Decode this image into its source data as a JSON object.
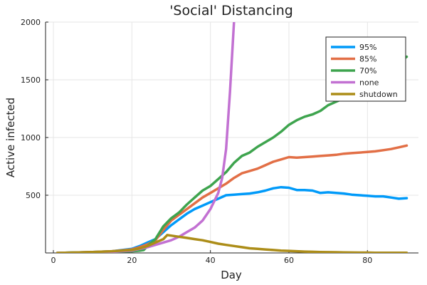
{
  "chart_data": {
    "type": "line",
    "title": "'Social' Distancing",
    "xlabel": "Day",
    "ylabel": "Active infected",
    "xlim": [
      -2,
      93
    ],
    "ylim": [
      0,
      2000
    ],
    "xticks": [
      0,
      20,
      40,
      60,
      80
    ],
    "yticks": [
      500,
      1000,
      1500,
      2000
    ],
    "grid": true,
    "legend_position": "top-right",
    "series": [
      {
        "name": "95%",
        "color": "#009af9",
        "x": [
          1,
          5,
          10,
          15,
          20,
          22,
          24,
          26,
          28,
          30,
          32,
          34,
          36,
          38,
          40,
          42,
          44,
          46,
          48,
          50,
          52,
          54,
          56,
          58,
          60,
          62,
          64,
          66,
          68,
          70,
          72,
          74,
          76,
          78,
          80,
          82,
          84,
          86,
          88,
          90
        ],
        "y": [
          0,
          3,
          8,
          15,
          35,
          60,
          90,
          120,
          180,
          240,
          290,
          340,
          380,
          410,
          440,
          470,
          500,
          505,
          510,
          515,
          525,
          540,
          560,
          570,
          565,
          545,
          545,
          540,
          520,
          525,
          520,
          515,
          505,
          500,
          495,
          490,
          490,
          480,
          470,
          475
        ]
      },
      {
        "name": "85%",
        "color": "#e26f46",
        "x": [
          1,
          5,
          10,
          15,
          20,
          22,
          24,
          26,
          28,
          30,
          32,
          34,
          36,
          38,
          40,
          42,
          44,
          46,
          48,
          50,
          52,
          54,
          56,
          58,
          60,
          62,
          64,
          66,
          68,
          70,
          72,
          74,
          76,
          78,
          80,
          82,
          84,
          86,
          88,
          90
        ],
        "y": [
          0,
          3,
          8,
          15,
          30,
          50,
          75,
          110,
          200,
          280,
          330,
          380,
          430,
          480,
          520,
          560,
          600,
          650,
          690,
          710,
          730,
          760,
          790,
          810,
          830,
          825,
          830,
          835,
          840,
          845,
          850,
          860,
          865,
          870,
          875,
          880,
          890,
          900,
          915,
          930
        ]
      },
      {
        "name": "70%",
        "color": "#3ea44e",
        "x": [
          1,
          5,
          10,
          15,
          20,
          22,
          23,
          24,
          26,
          28,
          30,
          32,
          34,
          36,
          38,
          40,
          42,
          44,
          46,
          48,
          50,
          52,
          54,
          56,
          58,
          60,
          62,
          64,
          66,
          68,
          70,
          72,
          74,
          76,
          78,
          80,
          82,
          84,
          86,
          88,
          90
        ],
        "y": [
          0,
          3,
          5,
          10,
          15,
          20,
          25,
          60,
          120,
          230,
          300,
          350,
          420,
          480,
          540,
          580,
          640,
          700,
          780,
          840,
          870,
          920,
          960,
          1000,
          1050,
          1110,
          1150,
          1180,
          1200,
          1230,
          1280,
          1310,
          1340,
          1380,
          1400,
          1430,
          1480,
          1530,
          1580,
          1650,
          1700
        ]
      },
      {
        "name": "none",
        "color": "#c271d2",
        "x": [
          1,
          5,
          10,
          15,
          20,
          22,
          24,
          26,
          28,
          30,
          32,
          34,
          36,
          38,
          40,
          42,
          43,
          44,
          45,
          46
        ],
        "y": [
          0,
          2,
          5,
          10,
          20,
          35,
          50,
          70,
          90,
          110,
          140,
          180,
          220,
          280,
          380,
          520,
          650,
          900,
          1400,
          2000
        ]
      },
      {
        "name": "shutdown",
        "color": "#ac8d18",
        "x": [
          1,
          5,
          10,
          15,
          20,
          22,
          24,
          26,
          28,
          29,
          30,
          32,
          34,
          36,
          38,
          40,
          42,
          44,
          46,
          48,
          50,
          52,
          54,
          56,
          58,
          60,
          62,
          64,
          66,
          68,
          70,
          72,
          74,
          76,
          78,
          80,
          82,
          84,
          86,
          88,
          90
        ],
        "y": [
          0,
          3,
          8,
          15,
          25,
          40,
          60,
          90,
          120,
          155,
          150,
          140,
          130,
          120,
          110,
          95,
          80,
          70,
          60,
          50,
          40,
          35,
          30,
          25,
          20,
          18,
          15,
          12,
          10,
          8,
          7,
          6,
          5,
          4,
          3,
          3,
          2,
          2,
          1,
          1,
          1
        ]
      }
    ]
  }
}
